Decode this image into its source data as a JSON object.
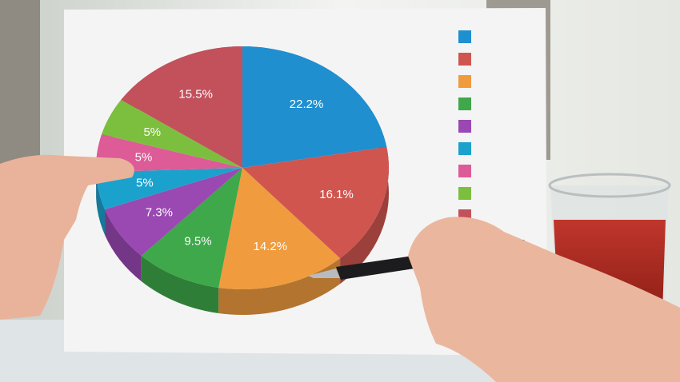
{
  "chart_data": {
    "type": "pie",
    "style": "3d",
    "slices": [
      {
        "label": "22.2%",
        "value": 22.2,
        "color": "#1f8fd0"
      },
      {
        "label": "16.1%",
        "value": 16.1,
        "color": "#d0554f"
      },
      {
        "label": "14.2%",
        "value": 14.2,
        "color": "#ef9b3e"
      },
      {
        "label": "9.5%",
        "value": 9.5,
        "color": "#3ea84a"
      },
      {
        "label": "7.3%",
        "value": 7.3,
        "color": "#9a48b2"
      },
      {
        "label": "5%",
        "value": 5,
        "color": "#1ba2cc"
      },
      {
        "label": "5%",
        "value": 5,
        "color": "#dd5b96"
      },
      {
        "label": "5%",
        "value": 5,
        "color": "#7cbf3e"
      },
      {
        "label": "15.5%",
        "value": 15.5,
        "color": "#c2515c"
      }
    ],
    "legend": {
      "placement": "right",
      "entries": 9,
      "labels_visible": false
    }
  }
}
